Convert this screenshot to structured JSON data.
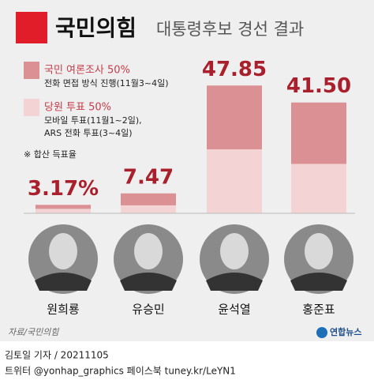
{
  "chart_data": {
    "type": "bar",
    "stacked": true,
    "title": "국민의힘",
    "subtitle": "대통령후보 경선 결과",
    "categories": [
      "원희룡",
      "유승민",
      "윤석열",
      "홍준표"
    ],
    "series": [
      {
        "name": "국민 여론조사 50%",
        "note": [
          "전화 면접 방식 진행(11월3~4일)"
        ],
        "color": "#db9093",
        "values": [
          1.5,
          4.5,
          23.9,
          23.0
        ]
      },
      {
        "name": "당원 투표 50%",
        "note": [
          "모바일 투표(11월1~2일),",
          "ARS 전화 투표(3~4일)"
        ],
        "color": "#f3d3d3",
        "values": [
          1.67,
          2.97,
          23.95,
          18.5
        ]
      }
    ],
    "totals": [
      3.17,
      7.47,
      47.85,
      41.5
    ],
    "value_labels": [
      "3.17%",
      "7.47",
      "47.85",
      "41.50"
    ],
    "ylim": [
      0,
      50
    ],
    "note": "※ 합산 득표율",
    "source": "자료/국민의힘",
    "logo": "연합뉴스",
    "credit": "김토일 기자 / 20211105",
    "social": "트위터 @yonhap_graphics  페이스북 tuney.kr/LeYN1"
  }
}
